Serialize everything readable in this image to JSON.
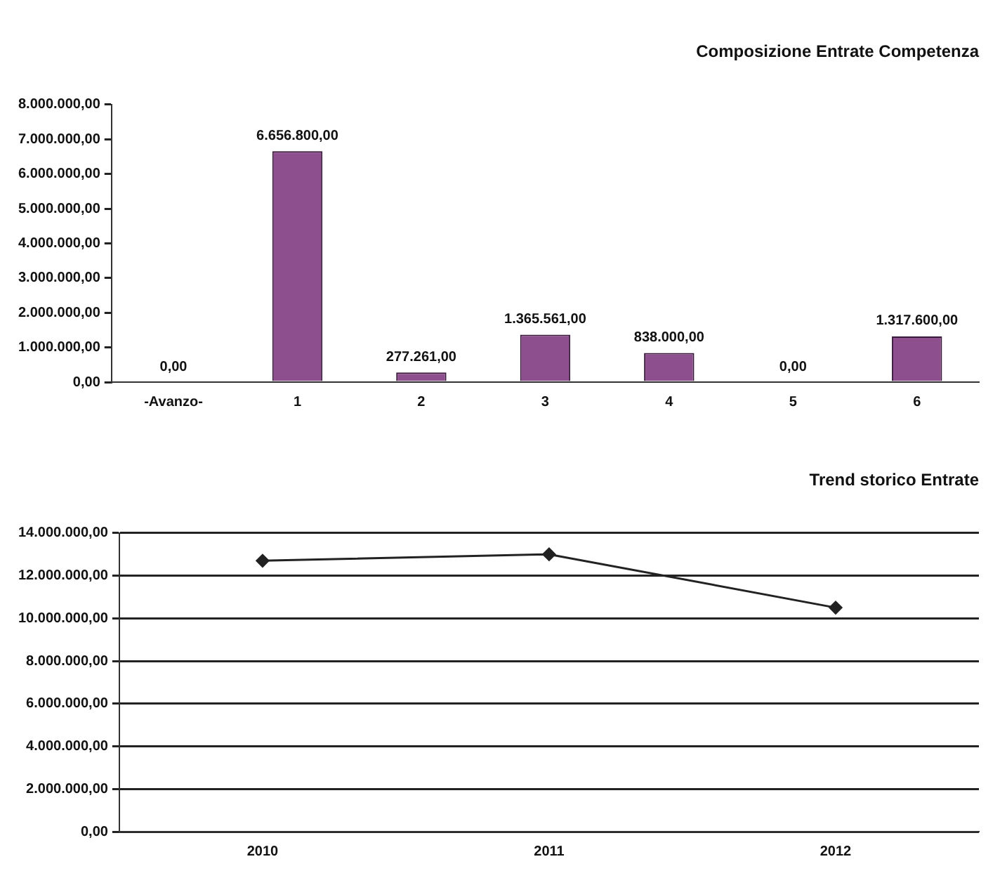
{
  "chart_data": [
    {
      "type": "bar",
      "title": "Composizione Entrate Competenza",
      "categories": [
        "-Avanzo-",
        "1",
        "2",
        "3",
        "4",
        "5",
        "6"
      ],
      "values": [
        0,
        6656800,
        277261,
        1365561,
        838000,
        0,
        1317600
      ],
      "color": "#8e4f8e",
      "value_labels": [
        "0,00",
        "6.656.800,00",
        "277.261,00",
        "1.365.561,00",
        "838.000,00",
        "0,00",
        "1.317.600,00"
      ],
      "ylim": [
        0,
        8000000
      ],
      "yticks": [
        {
          "value": 0,
          "label": "0,00"
        },
        {
          "value": 1000000,
          "label": "1.000.000,00"
        },
        {
          "value": 2000000,
          "label": "2.000.000,00"
        },
        {
          "value": 3000000,
          "label": "3.000.000,00"
        },
        {
          "value": 4000000,
          "label": "4.000.000,00"
        },
        {
          "value": 5000000,
          "label": "5.000.000,00"
        },
        {
          "value": 6000000,
          "label": "6.000.000,00"
        },
        {
          "value": 7000000,
          "label": "7.000.000,00"
        },
        {
          "value": 8000000,
          "label": "8.000.000,00"
        }
      ],
      "grid": false,
      "legend": false
    },
    {
      "type": "line",
      "title": "Trend storico Entrate",
      "categories": [
        "2010",
        "2011",
        "2012"
      ],
      "values": [
        12700000,
        13000000,
        10500000
      ],
      "color": "#222222",
      "marker": "diamond",
      "ylim": [
        0,
        14000000
      ],
      "yticks": [
        {
          "value": 0,
          "label": "0,00"
        },
        {
          "value": 2000000,
          "label": "2.000.000,00"
        },
        {
          "value": 4000000,
          "label": "4.000.000,00"
        },
        {
          "value": 6000000,
          "label": "6.000.000,00"
        },
        {
          "value": 8000000,
          "label": "8.000.000,00"
        },
        {
          "value": 10000000,
          "label": "10.000.000,00"
        },
        {
          "value": 12000000,
          "label": "12.000.000,00"
        },
        {
          "value": 14000000,
          "label": "14.000.000,00"
        }
      ],
      "grid": "y",
      "legend": false
    }
  ]
}
